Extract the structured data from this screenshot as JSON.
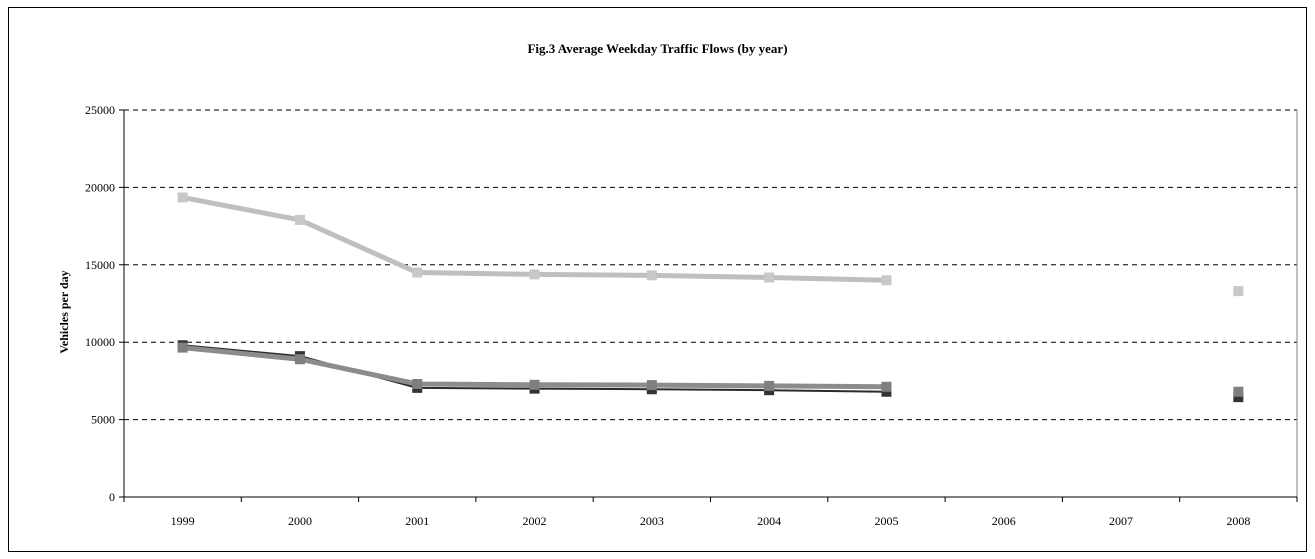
{
  "chart_data": {
    "type": "line",
    "title": "Fig.3  Average Weekday Traffic Flows (by year)",
    "ylabel": "Vehicles per day",
    "xlabel": "",
    "ylim": [
      0,
      25000
    ],
    "y_ticks": [
      "0",
      "5000",
      "10000",
      "15000",
      "20000",
      "25000"
    ],
    "y_tick_values": [
      0,
      5000,
      10000,
      15000,
      20000,
      25000
    ],
    "categories": [
      "1999",
      "2000",
      "2001",
      "2002",
      "2003",
      "2004",
      "2005",
      "2006",
      "2007",
      "2008"
    ],
    "grid": "horizontal dashed",
    "legend": "none",
    "series": [
      {
        "color": "#bfbfbf",
        "marker_color": "#c8c8c8",
        "values": [
          19350,
          17900,
          14500,
          14380,
          14320,
          14180,
          14000,
          null,
          null,
          13300
        ]
      },
      {
        "color": "#2b2b2b",
        "marker_color": "#333333",
        "values": [
          9800,
          9100,
          7050,
          7000,
          6960,
          6900,
          6800,
          null,
          null,
          6450
        ]
      },
      {
        "color": "#8c8c8c",
        "marker_color": "#7f7f7f",
        "values": [
          9650,
          8900,
          7300,
          7250,
          7230,
          7180,
          7120,
          null,
          null,
          6800
        ]
      }
    ]
  }
}
